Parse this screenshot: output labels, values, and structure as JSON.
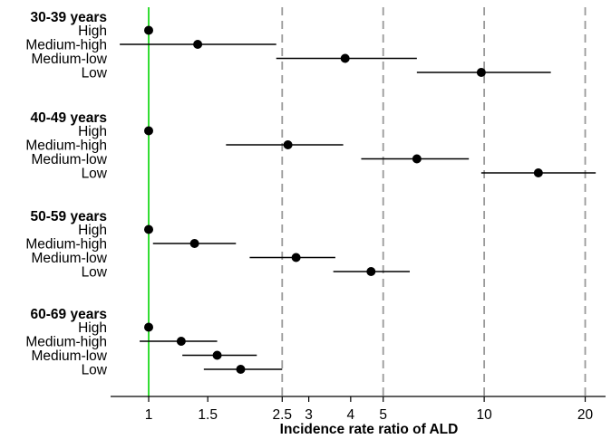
{
  "chart_data": {
    "type": "forest",
    "xlabel": "Incidence rate ratio of ALD",
    "x_scale": "log",
    "xlim": [
      0.77,
      23
    ],
    "xticks": [
      1,
      1.5,
      2.5,
      3,
      4,
      5,
      10,
      20
    ],
    "reference_line": {
      "value": 1,
      "color": "#33dd33"
    },
    "dashed_lines": [
      2.5,
      5,
      10,
      20
    ],
    "groups": [
      {
        "title": "30-39 years",
        "rows": [
          {
            "label": "High",
            "estimate": 1.0
          },
          {
            "label": "Medium-high",
            "estimate": 1.4,
            "lower": 0.82,
            "upper": 2.4
          },
          {
            "label": "Medium-low",
            "estimate": 3.85,
            "lower": 2.4,
            "upper": 6.3
          },
          {
            "label": "Low",
            "estimate": 9.8,
            "lower": 6.3,
            "upper": 15.8
          }
        ]
      },
      {
        "title": "40-49 years",
        "rows": [
          {
            "label": "High",
            "estimate": 1.0
          },
          {
            "label": "Medium-high",
            "estimate": 2.6,
            "lower": 1.7,
            "upper": 3.8
          },
          {
            "label": "Medium-low",
            "estimate": 6.3,
            "lower": 4.3,
            "upper": 9.0
          },
          {
            "label": "Low",
            "estimate": 14.5,
            "lower": 9.8,
            "upper": 21.5
          }
        ]
      },
      {
        "title": "50-59 years",
        "rows": [
          {
            "label": "High",
            "estimate": 1.0
          },
          {
            "label": "Medium-high",
            "estimate": 1.37,
            "lower": 1.03,
            "upper": 1.82
          },
          {
            "label": "Medium-low",
            "estimate": 2.75,
            "lower": 2.0,
            "upper": 3.6
          },
          {
            "label": "Low",
            "estimate": 4.6,
            "lower": 3.55,
            "upper": 6.0
          }
        ]
      },
      {
        "title": "60-69 years",
        "rows": [
          {
            "label": "High",
            "estimate": 1.0
          },
          {
            "label": "Medium-high",
            "estimate": 1.25,
            "lower": 0.94,
            "upper": 1.6
          },
          {
            "label": "Medium-low",
            "estimate": 1.6,
            "lower": 1.26,
            "upper": 2.1
          },
          {
            "label": "Low",
            "estimate": 1.88,
            "lower": 1.46,
            "upper": 2.5
          }
        ]
      }
    ]
  }
}
